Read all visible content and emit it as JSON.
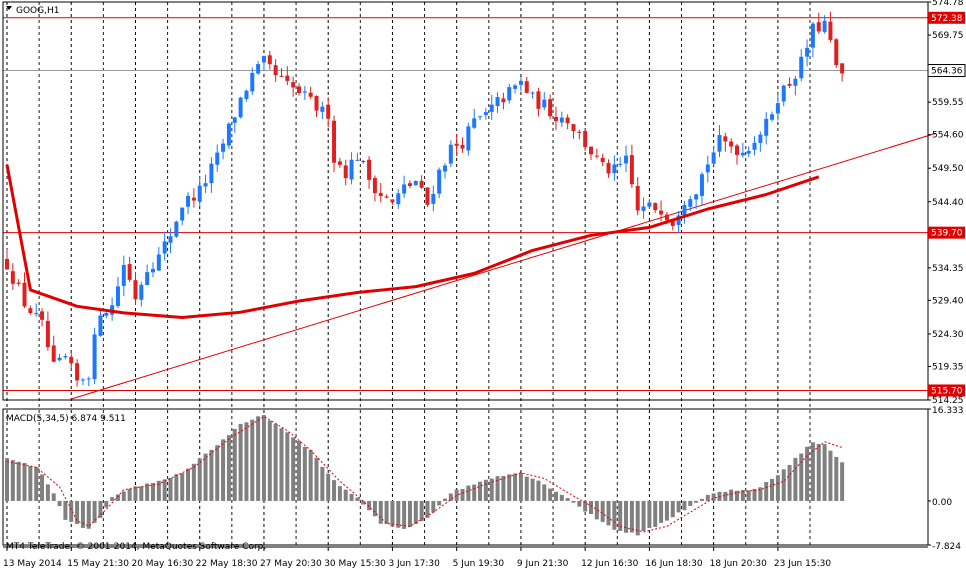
{
  "header": {
    "symbol_title": "GOOG,H1",
    "menu_icon": "dropdown-triangle-icon"
  },
  "macd": {
    "title": "MACD(5,34,5) 6.874 9.511"
  },
  "footer": {
    "copyright": "MT4 TeleTrade, © 2001-2014, MetaQuotes Software Corp."
  },
  "colors": {
    "bull": "#1e78ff",
    "bear": "#e02020",
    "line": "#e00000",
    "grid": "#000000",
    "histogram": "#808080",
    "signal": "#e00000",
    "background": "#ffffff",
    "current_tag": "#ffffff"
  },
  "chart_data": [
    {
      "type": "candlestick",
      "title": "GOOG,H1",
      "ylim": [
        514.25,
        574.78
      ],
      "y_ticks": [
        574.78,
        569.75,
        564.36,
        559.55,
        554.6,
        549.5,
        544.4,
        539.7,
        534.35,
        529.4,
        524.3,
        519.35,
        514.25
      ],
      "y_tick_labels": [
        "574.78",
        "569.75",
        "564.36",
        "559.55",
        "554.60",
        "549.50",
        "544.40",
        "539.70",
        "534.35",
        "529.40",
        "524.30",
        "519.35",
        "514.25"
      ],
      "x_ticks": [
        {
          "index": 0,
          "label": "13 May 2014"
        },
        {
          "index": 11,
          "label": "15 May 21:30"
        },
        {
          "index": 22,
          "label": "20 May 16:30"
        },
        {
          "index": 33,
          "label": "22 May 18:30"
        },
        {
          "index": 44,
          "label": "27 May 20:30"
        },
        {
          "index": 55,
          "label": "30 May 15:30"
        },
        {
          "index": 66,
          "label": "3 Jun 17:30"
        },
        {
          "index": 77,
          "label": "5 Jun 19:30"
        },
        {
          "index": 88,
          "label": "9 Jun 21:30"
        },
        {
          "index": 99,
          "label": "12 Jun 16:30"
        },
        {
          "index": 110,
          "label": "16 Jun 18:30"
        },
        {
          "index": 121,
          "label": "18 Jun 20:30"
        },
        {
          "index": 132,
          "label": "23 Jun 15:30"
        }
      ],
      "horizontal_levels": [
        {
          "value": 572.38,
          "label": "572.38",
          "style": "red"
        },
        {
          "value": 564.36,
          "label": "564.36",
          "style": "current"
        },
        {
          "value": 539.7,
          "label": "539.70",
          "style": "red"
        },
        {
          "value": 515.7,
          "label": "515.70",
          "style": "red"
        }
      ],
      "trendline": {
        "from": {
          "index": 11,
          "value": 514.4
        },
        "to": {
          "index": 159,
          "value": 554.8
        }
      },
      "waypoints": [
        [
          0,
          535.0
        ],
        [
          3,
          529.0
        ],
        [
          6,
          525.5
        ],
        [
          8,
          519.0
        ],
        [
          10,
          520.5
        ],
        [
          12,
          517.0
        ],
        [
          14,
          518.5
        ],
        [
          16,
          528.0
        ],
        [
          18,
          528.5
        ],
        [
          20,
          535.0
        ],
        [
          22,
          530.0
        ],
        [
          24,
          534.5
        ],
        [
          26,
          536.0
        ],
        [
          28,
          539.5
        ],
        [
          30,
          544.0
        ],
        [
          33,
          546.0
        ],
        [
          36,
          551.0
        ],
        [
          38,
          555.5
        ],
        [
          40,
          560.0
        ],
        [
          42,
          563.5
        ],
        [
          44,
          565.5
        ],
        [
          46,
          563.5
        ],
        [
          48,
          562.0
        ],
        [
          50,
          561.0
        ],
        [
          52,
          559.5
        ],
        [
          54,
          558.0
        ],
        [
          55,
          558.0
        ],
        [
          56,
          551.0
        ],
        [
          58,
          549.0
        ],
        [
          60,
          551.5
        ],
        [
          62,
          548.0
        ],
        [
          64,
          545.5
        ],
        [
          66,
          544.0
        ],
        [
          68,
          546.5
        ],
        [
          70,
          547.5
        ],
        [
          72,
          544.0
        ],
        [
          74,
          549.0
        ],
        [
          76,
          552.5
        ],
        [
          78,
          553.5
        ],
        [
          80,
          556.5
        ],
        [
          82,
          557.5
        ],
        [
          84,
          559.5
        ],
        [
          86,
          561.0
        ],
        [
          88,
          562.5
        ],
        [
          90,
          560.0
        ],
        [
          92,
          559.0
        ],
        [
          94,
          557.5
        ],
        [
          96,
          557.0
        ],
        [
          98,
          554.5
        ],
        [
          100,
          552.0
        ],
        [
          102,
          549.5
        ],
        [
          104,
          549.0
        ],
        [
          106,
          550.5
        ],
        [
          108,
          543.0
        ],
        [
          110,
          543.5
        ],
        [
          112,
          543.5
        ],
        [
          114,
          541.5
        ],
        [
          116,
          545.0
        ],
        [
          118,
          546.5
        ],
        [
          120,
          550.5
        ],
        [
          122,
          553.5
        ],
        [
          124,
          553.0
        ],
        [
          126,
          552.0
        ],
        [
          128,
          554.0
        ],
        [
          130,
          556.0
        ],
        [
          132,
          560.5
        ],
        [
          134,
          562.5
        ],
        [
          136,
          565.5
        ],
        [
          138,
          570.5
        ],
        [
          140,
          571.5
        ],
        [
          142,
          565.0
        ],
        [
          143,
          563.0
        ]
      ],
      "moving_average": [
        {
          "index": 0,
          "value": 550.0
        },
        {
          "index": 4,
          "value": 531.0
        },
        {
          "index": 12,
          "value": 528.5
        },
        {
          "index": 20,
          "value": 527.5
        },
        {
          "index": 30,
          "value": 526.8
        },
        {
          "index": 40,
          "value": 527.6
        },
        {
          "index": 50,
          "value": 529.3
        },
        {
          "index": 60,
          "value": 530.6
        },
        {
          "index": 70,
          "value": 531.5
        },
        {
          "index": 80,
          "value": 533.5
        },
        {
          "index": 90,
          "value": 537.0
        },
        {
          "index": 100,
          "value": 539.3
        },
        {
          "index": 110,
          "value": 540.5
        },
        {
          "index": 120,
          "value": 543.3
        },
        {
          "index": 130,
          "value": 545.5
        },
        {
          "index": 139,
          "value": 548.2
        }
      ]
    },
    {
      "type": "histogram",
      "title": "MACD(5,34,5) 6.874 9.511",
      "ylim": [
        -7.824,
        16.333
      ],
      "y_ticks": [
        16.333,
        0.0,
        -7.824
      ],
      "y_tick_labels": [
        "16.333",
        "0.00",
        "-7.824"
      ],
      "bars_waypoints": [
        [
          0,
          7.5
        ],
        [
          5,
          6.0
        ],
        [
          8,
          1.5
        ],
        [
          10,
          -3.5
        ],
        [
          14,
          -5.0
        ],
        [
          16,
          -3.0
        ],
        [
          18,
          0.5
        ],
        [
          22,
          2.5
        ],
        [
          26,
          3.5
        ],
        [
          30,
          5.0
        ],
        [
          36,
          10.0
        ],
        [
          40,
          13.5
        ],
        [
          44,
          15.3
        ],
        [
          48,
          12.0
        ],
        [
          52,
          9.0
        ],
        [
          56,
          3.5
        ],
        [
          60,
          0.5
        ],
        [
          64,
          -4.0
        ],
        [
          68,
          -5.0
        ],
        [
          72,
          -3.0
        ],
        [
          76,
          1.5
        ],
        [
          80,
          3.0
        ],
        [
          84,
          4.5
        ],
        [
          88,
          5.0
        ],
        [
          92,
          3.0
        ],
        [
          96,
          0.5
        ],
        [
          100,
          -2.5
        ],
        [
          104,
          -5.0
        ],
        [
          108,
          -6.0
        ],
        [
          112,
          -4.0
        ],
        [
          116,
          -1.5
        ],
        [
          120,
          1.0
        ],
        [
          124,
          2.0
        ],
        [
          128,
          2.0
        ],
        [
          132,
          4.5
        ],
        [
          136,
          8.5
        ],
        [
          138,
          10.5
        ],
        [
          140,
          10.0
        ],
        [
          143,
          7.0
        ]
      ],
      "signal_waypoints": [
        [
          0,
          7.0
        ],
        [
          5,
          6.0
        ],
        [
          9,
          2.5
        ],
        [
          12,
          -3.5
        ],
        [
          14,
          -4.5
        ],
        [
          17,
          -1.5
        ],
        [
          20,
          2.0
        ],
        [
          26,
          3.0
        ],
        [
          32,
          6.0
        ],
        [
          38,
          11.0
        ],
        [
          44,
          15.0
        ],
        [
          48,
          12.5
        ],
        [
          52,
          9.0
        ],
        [
          57,
          3.5
        ],
        [
          61,
          0.0
        ],
        [
          65,
          -4.0
        ],
        [
          69,
          -4.5
        ],
        [
          73,
          -2.0
        ],
        [
          77,
          1.0
        ],
        [
          82,
          3.0
        ],
        [
          88,
          5.0
        ],
        [
          92,
          4.0
        ],
        [
          96,
          1.5
        ],
        [
          101,
          -1.5
        ],
        [
          105,
          -4.5
        ],
        [
          109,
          -5.5
        ],
        [
          113,
          -4.5
        ],
        [
          117,
          -2.0
        ],
        [
          121,
          0.5
        ],
        [
          125,
          1.5
        ],
        [
          129,
          2.0
        ],
        [
          133,
          3.5
        ],
        [
          137,
          8.0
        ],
        [
          140,
          10.5
        ],
        [
          143,
          9.5
        ]
      ]
    }
  ]
}
